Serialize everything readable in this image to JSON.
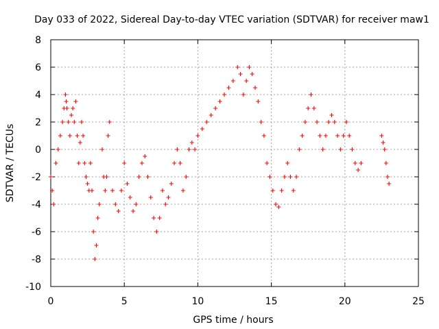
{
  "chart_data": {
    "type": "scatter",
    "title": "Day 033 of 2022, Sidereal Day-to-day VTEC variation (SDTVAR) for receiver maw1",
    "xlabel": "GPS time / hours",
    "ylabel": "SDTVAR / TECUs",
    "xlim": [
      0,
      25
    ],
    "ylim": [
      -10,
      8
    ],
    "xticks": [
      0,
      5,
      10,
      15,
      20,
      25
    ],
    "yticks": [
      -10,
      -8,
      -6,
      -4,
      -2,
      0,
      2,
      4,
      6,
      8
    ],
    "xtick_labels": [
      "0",
      "5",
      "10",
      "15",
      "20",
      "25"
    ],
    "ytick_labels": [
      "-10",
      "-8",
      "-6",
      "-4",
      "-2",
      "0",
      "2",
      "4",
      "6",
      "8"
    ],
    "grid": true,
    "marker": "+",
    "color": "#ff0000",
    "series": [
      {
        "name": "maw1",
        "x": [
          0.0,
          0.1,
          0.2,
          0.35,
          0.5,
          0.65,
          0.8,
          0.9,
          1.0,
          1.05,
          1.1,
          1.2,
          1.3,
          1.4,
          1.5,
          1.6,
          1.7,
          1.8,
          1.9,
          2.0,
          2.1,
          2.2,
          2.3,
          2.4,
          2.5,
          2.6,
          2.7,
          2.8,
          2.9,
          3.0,
          3.1,
          3.2,
          3.3,
          3.5,
          3.6,
          3.7,
          3.8,
          3.9,
          4.0,
          4.2,
          4.4,
          4.6,
          4.8,
          5.0,
          5.2,
          5.4,
          5.6,
          5.8,
          6.0,
          6.2,
          6.4,
          6.6,
          6.8,
          7.0,
          7.2,
          7.4,
          7.6,
          7.8,
          8.0,
          8.2,
          8.4,
          8.6,
          8.8,
          9.0,
          9.2,
          9.4,
          9.6,
          9.8,
          10.0,
          10.3,
          10.6,
          10.9,
          11.2,
          11.5,
          11.8,
          12.1,
          12.4,
          12.7,
          12.9,
          13.1,
          13.3,
          13.5,
          13.7,
          13.9,
          14.1,
          14.3,
          14.5,
          14.7,
          14.9,
          15.1,
          15.3,
          15.5,
          15.7,
          15.9,
          16.1,
          16.3,
          16.5,
          16.7,
          16.9,
          17.1,
          17.3,
          17.5,
          17.7,
          17.9,
          18.1,
          18.3,
          18.5,
          18.7,
          18.9,
          19.1,
          19.3,
          19.5,
          19.7,
          19.9,
          20.1,
          20.3,
          20.5,
          20.7,
          20.9,
          21.1,
          22.5,
          22.6,
          22.7,
          22.8,
          22.9,
          23.0
        ],
        "y": [
          -2.0,
          -3.0,
          -4.0,
          -1.0,
          0.0,
          1.0,
          2.0,
          3.0,
          4.0,
          3.5,
          3.0,
          2.0,
          1.0,
          2.5,
          3.0,
          2.0,
          3.5,
          1.0,
          -1.0,
          0.5,
          2.0,
          1.0,
          -1.0,
          -2.0,
          -2.5,
          -3.0,
          -1.0,
          -3.0,
          -6.0,
          -8.0,
          -7.0,
          -5.0,
          -4.0,
          0.0,
          -2.0,
          -3.0,
          -2.0,
          1.0,
          2.0,
          -3.0,
          -4.0,
          -4.5,
          -3.0,
          -1.0,
          -2.5,
          -3.5,
          -4.5,
          -4.0,
          -2.0,
          -1.0,
          -0.5,
          -2.0,
          -3.5,
          -5.0,
          -6.0,
          -5.0,
          -3.0,
          -4.0,
          -3.5,
          -2.5,
          -1.0,
          0.0,
          -1.0,
          -3.0,
          -2.0,
          0.0,
          0.5,
          0.0,
          1.0,
          1.5,
          2.0,
          2.5,
          3.0,
          3.5,
          4.0,
          4.5,
          5.0,
          6.0,
          5.5,
          4.0,
          5.0,
          6.0,
          5.5,
          4.5,
          3.5,
          2.0,
          1.0,
          -1.0,
          -2.0,
          -3.0,
          -4.0,
          -4.2,
          -3.0,
          -2.0,
          -1.0,
          -2.0,
          -3.0,
          -2.0,
          0.0,
          1.0,
          2.0,
          3.0,
          4.0,
          3.0,
          2.0,
          1.0,
          0.0,
          1.0,
          2.0,
          2.5,
          2.0,
          1.0,
          0.0,
          1.0,
          2.0,
          1.0,
          0.0,
          -1.0,
          -1.5,
          -1.0,
          1.0,
          0.5,
          0.0,
          -1.0,
          -2.0,
          -2.5
        ]
      }
    ]
  }
}
